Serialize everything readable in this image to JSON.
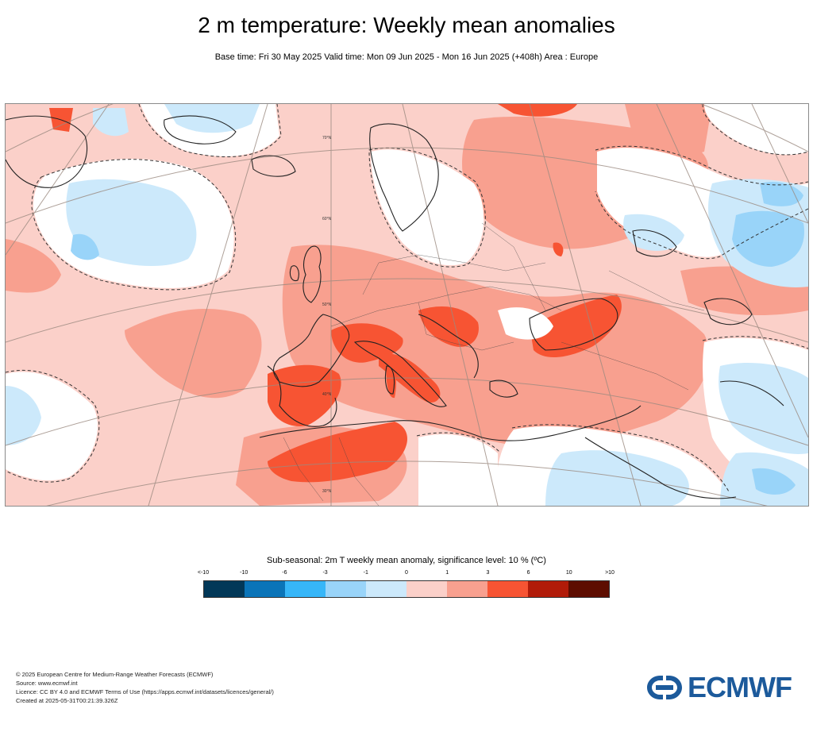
{
  "header": {
    "title": "2 m temperature: Weekly mean anomalies",
    "subtitle": "Base time: Fri 30 May 2025 Valid time: Mon 09 Jun 2025 - Mon 16 Jun 2025 (+408h) Area : Europe"
  },
  "map": {
    "latitude_labels": [
      "70°N",
      "60°N",
      "50°N",
      "40°N",
      "30°N"
    ],
    "colors": {
      "ocean_weak": "#fbd0c9",
      "warm_mid": "#f8a08f",
      "warm_strong": "#f75433",
      "neutral": "#ffffff",
      "cool_weak": "#cce9fb",
      "cool_mid": "#99d4f9",
      "coast": "#222222",
      "graticule": "#9b8a80"
    }
  },
  "legend": {
    "title": "Sub-seasonal: 2m T weekly mean anomaly, significance level: 10 % (ºC)",
    "ticks": [
      "<-10",
      "-10",
      "-6",
      "-3",
      "-1",
      "0",
      "1",
      "3",
      "6",
      "10",
      ">10"
    ],
    "colors": [
      "#023858",
      "#0a74b8",
      "#36b6f8",
      "#99d4f9",
      "#cce9fb",
      "#fbd0c9",
      "#f8a08f",
      "#f75433",
      "#b11b09",
      "#5d0d00"
    ]
  },
  "footer": {
    "copyright": "© 2025 European Centre for Medium-Range Weather Forecasts (ECMWF)",
    "source": "Source: www.ecmwf.int",
    "licence": "Licence: CC BY 4.0 and ECMWF Terms of Use (https://apps.ecmwf.int/datasets/licences/general/)",
    "created": "Created at 2025-05-31T00:21:39.326Z"
  },
  "logo": {
    "text": "ECMWF",
    "color": "#1c5a9b"
  }
}
